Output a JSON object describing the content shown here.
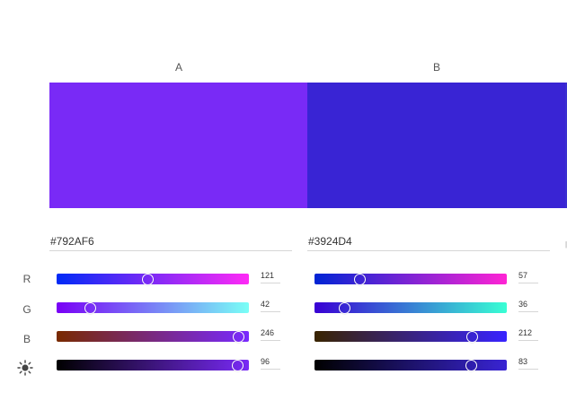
{
  "colors": [
    {
      "label": "A",
      "hex": "#792AF6",
      "swatch_color": "#792AF6",
      "r": 121,
      "g": 42,
      "b": 246,
      "brightness": 96
    },
    {
      "label": "B",
      "hex": "#3924D4",
      "swatch_color": "#3924D4",
      "r": 57,
      "g": 36,
      "b": 212,
      "brightness": 83
    }
  ],
  "rows": {
    "r_label": "R",
    "g_label": "G",
    "b_label": "B",
    "brightness_icon": "sun-icon"
  }
}
